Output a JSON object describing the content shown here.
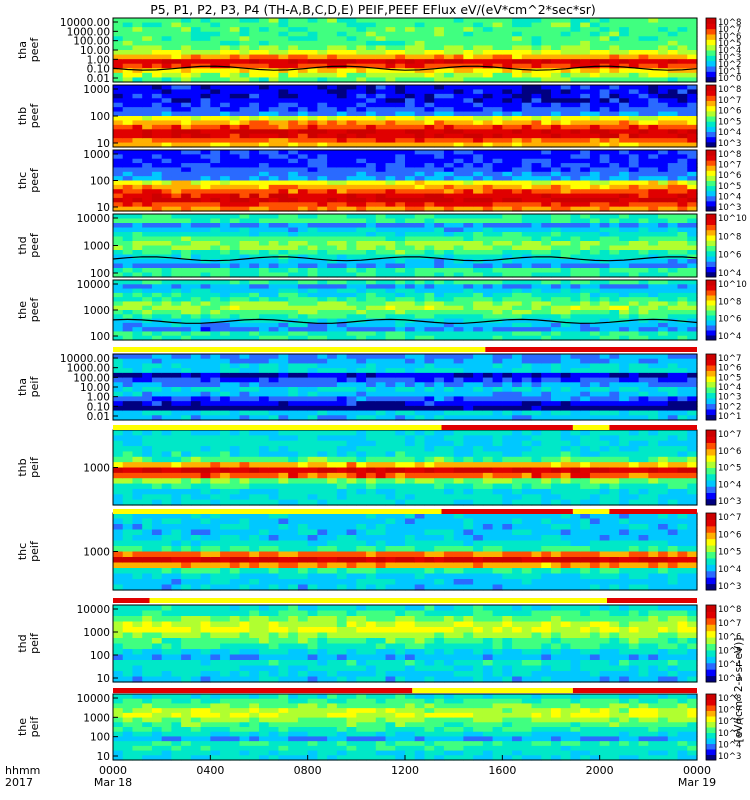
{
  "title": "P5, P1, P2, P3, P4 (TH-A,B,C,D,E) PEIF,PEEF EFlux eV/(eV*cm^2*sec*sr)",
  "colorbar_units_label": "[eV/(cm^2-s-sr-eV)]",
  "palette": [
    "#000080",
    "#0000ff",
    "#2a6aff",
    "#00c8ff",
    "#00e8c8",
    "#40ff80",
    "#b0ff30",
    "#ffff00",
    "#ffb000",
    "#ff5000",
    "#e00000",
    "#cc0000"
  ],
  "time_axis": {
    "label_row1": "hhmm",
    "label_row2": "2017",
    "ticks": [
      {
        "label": "0000",
        "date": "Mar 18"
      },
      {
        "label": "0400",
        "date": ""
      },
      {
        "label": "0800",
        "date": ""
      },
      {
        "label": "1200",
        "date": ""
      },
      {
        "label": "1600",
        "date": ""
      },
      {
        "label": "2000",
        "date": ""
      },
      {
        "label": "0000",
        "date": "Mar 19"
      }
    ]
  },
  "chart_data": {
    "type": "heatmap",
    "x_unit": "UT hour",
    "x_range": [
      0,
      24
    ],
    "panels": [
      {
        "id": "tha-peef",
        "probe": "tha",
        "product": "peef",
        "yticks": [
          "10000.00",
          "1000.00",
          "100.00",
          "10.00",
          "1.00",
          "0.10",
          "0.01"
        ],
        "cbar_ticks": [
          "10^8",
          "10^7",
          "10^6",
          "10^5",
          "10^4",
          "10^3",
          "10^2",
          "10^1",
          "10^0"
        ],
        "band_center": 0.7,
        "band_width": 0.14,
        "band_level": 0.95,
        "bg_level": 0.45,
        "curve": true
      },
      {
        "id": "thb-peef",
        "probe": "thb",
        "product": "peef",
        "yticks": [
          "1000",
          "100",
          "10"
        ],
        "cbar_ticks": [
          "10^8",
          "10^7",
          "10^6",
          "10^5",
          "10^4",
          "10^3"
        ],
        "band_center": 0.78,
        "band_width": 0.25,
        "band_level": 0.95,
        "bg_level": 0.12
      },
      {
        "id": "thc-peef",
        "probe": "thc",
        "product": "peef",
        "yticks": [
          "1000",
          "100",
          "10"
        ],
        "cbar_ticks": [
          "10^8",
          "10^7",
          "10^6",
          "10^5",
          "10^4",
          "10^3"
        ],
        "band_center": 0.8,
        "band_width": 0.28,
        "band_level": 0.95,
        "bg_level": 0.15
      },
      {
        "id": "thd-peef",
        "probe": "thd",
        "product": "peef",
        "yticks": [
          "10000",
          "1000",
          "100"
        ],
        "cbar_ticks": [
          "10^10",
          "10^8",
          "10^6",
          "10^4"
        ],
        "band_center": 0.5,
        "band_width": 0.35,
        "band_level": 0.55,
        "bg_level": 0.3,
        "curve": true
      },
      {
        "id": "the-peef",
        "probe": "the",
        "product": "peef",
        "yticks": [
          "10000",
          "1000",
          "100"
        ],
        "cbar_ticks": [
          "10^10",
          "10^8",
          "10^6",
          "10^4"
        ],
        "band_center": 0.45,
        "band_width": 0.4,
        "band_level": 0.55,
        "bg_level": 0.28,
        "curve": true
      },
      {
        "id": "tha-peif",
        "probe": "tha",
        "product": "peif",
        "yticks": [
          "10000.00",
          "1000.00",
          "100.00",
          "10.00",
          "1.00",
          "0.10",
          "0.01"
        ],
        "cbar_ticks": [
          "10^7",
          "10^6",
          "10^5",
          "10^4",
          "10^3",
          "10^2",
          "10^1"
        ],
        "band_center": 0.55,
        "band_width": 0.3,
        "band_level": 0.35,
        "bg_level": 0.2
      },
      {
        "id": "thb-peif",
        "probe": "thb",
        "product": "peif",
        "yticks": [
          "1000"
        ],
        "cbar_ticks": [
          "10^7",
          "10^6",
          "10^5",
          "10^4",
          "10^3"
        ],
        "band_center": 0.55,
        "band_width": 0.12,
        "band_level": 0.95,
        "bg_level": 0.35
      },
      {
        "id": "thc-peif",
        "probe": "thc",
        "product": "peif",
        "yticks": [
          "1000"
        ],
        "cbar_ticks": [
          "10^7",
          "10^6",
          "10^5",
          "10^4",
          "10^3"
        ],
        "band_center": 0.6,
        "band_width": 0.12,
        "band_level": 0.95,
        "bg_level": 0.3
      },
      {
        "id": "thd-peif",
        "probe": "thd",
        "product": "peif",
        "yticks": [
          "10000",
          "1000",
          "100",
          "10"
        ],
        "cbar_ticks": [
          "10^8",
          "10^7",
          "10^6",
          "10^5",
          "10^4",
          "10^3"
        ],
        "band_center": 0.3,
        "band_width": 0.4,
        "band_level": 0.6,
        "bg_level": 0.25
      },
      {
        "id": "the-peif",
        "probe": "the",
        "product": "peif",
        "yticks": [
          "10000",
          "1000",
          "100",
          "10"
        ],
        "cbar_ticks": [
          "10^8",
          "10^7",
          "10^6",
          "10^5",
          "10^4",
          "10^3"
        ],
        "band_center": 0.3,
        "band_width": 0.4,
        "band_level": 0.6,
        "bg_level": 0.28
      }
    ],
    "mode_bars": [
      {
        "after_panel": 4,
        "segments": [
          [
            0,
            15.3,
            "#ffff00"
          ],
          [
            15.3,
            24,
            "#e00000"
          ]
        ]
      },
      {
        "after_panel": 5,
        "segments": [
          [
            0,
            13.5,
            "#ffff00"
          ],
          [
            13.5,
            18.9,
            "#e00000"
          ],
          [
            18.9,
            20.4,
            "#ffff00"
          ],
          [
            20.4,
            24,
            "#e00000"
          ]
        ]
      },
      {
        "after_panel": 6,
        "segments": [
          [
            0,
            13.5,
            "#ffff00"
          ],
          [
            13.5,
            18.9,
            "#e00000"
          ],
          [
            18.9,
            20.4,
            "#ffff00"
          ],
          [
            20.4,
            24,
            "#e00000"
          ]
        ]
      },
      {
        "after_panel": 7,
        "segments": [
          [
            0,
            1.5,
            "#e00000"
          ],
          [
            1.5,
            20.3,
            "#ffff00"
          ],
          [
            20.3,
            24,
            "#e00000"
          ]
        ]
      },
      {
        "after_panel": 8,
        "segments": [
          [
            0,
            12.3,
            "#e00000"
          ],
          [
            12.3,
            18.9,
            "#ffff00"
          ],
          [
            18.9,
            24,
            "#e00000"
          ]
        ]
      }
    ]
  }
}
